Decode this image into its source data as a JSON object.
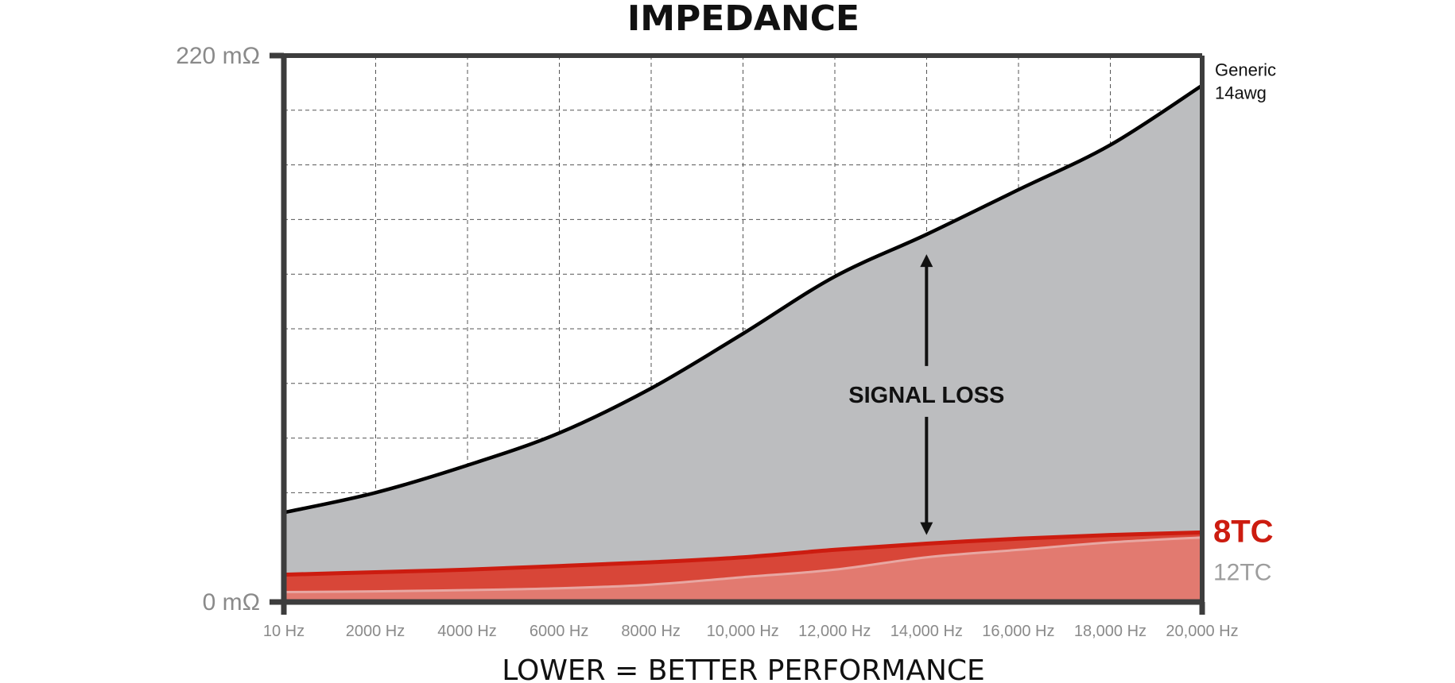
{
  "chart_data": {
    "type": "area",
    "title": "IMPEDANCE",
    "y_tick_labels": [
      "0 mΩ",
      "220 mΩ"
    ],
    "ylim": [
      0,
      220
    ],
    "xlim": [
      10,
      20000
    ],
    "x_tick_values": [
      10,
      2000,
      4000,
      6000,
      8000,
      10000,
      12000,
      14000,
      16000,
      18000,
      20000
    ],
    "x_tick_labels": [
      "10 Hz",
      "2000 Hz",
      "4000 Hz",
      "6000 Hz",
      "8000 Hz",
      "10,000 Hz",
      "12,000 Hz",
      "14,000 Hz",
      "16,000 Hz",
      "18,000 Hz",
      "20,000 Hz"
    ],
    "grid": true,
    "x": [
      10,
      2000,
      4000,
      6000,
      8000,
      10000,
      12000,
      14000,
      16000,
      18000,
      20000
    ],
    "series": [
      {
        "name": "Generic 14awg",
        "label_lines": [
          "Generic",
          "14awg"
        ],
        "color": "#000000",
        "fill": "#bcbdbf",
        "values": [
          36,
          44,
          55,
          68,
          86,
          108,
          131,
          148,
          166,
          184,
          208
        ]
      },
      {
        "name": "8TC",
        "color": "#cc1c10",
        "fill": "#d84638",
        "values": [
          11,
          12,
          13,
          14.5,
          16,
          18,
          21,
          23.5,
          25.5,
          27,
          28
        ]
      },
      {
        "name": "12TC",
        "color": "#e8a7a2",
        "fill": "#e27a70",
        "values": [
          4,
          4.3,
          4.8,
          5.5,
          7,
          10,
          13,
          18,
          21,
          24,
          26
        ]
      }
    ],
    "annotation": {
      "text": "SIGNAL LOSS",
      "x": 14000,
      "y_from": 27,
      "y_to": 140
    },
    "footer": "LOWER = BETTER PERFORMANCE"
  }
}
